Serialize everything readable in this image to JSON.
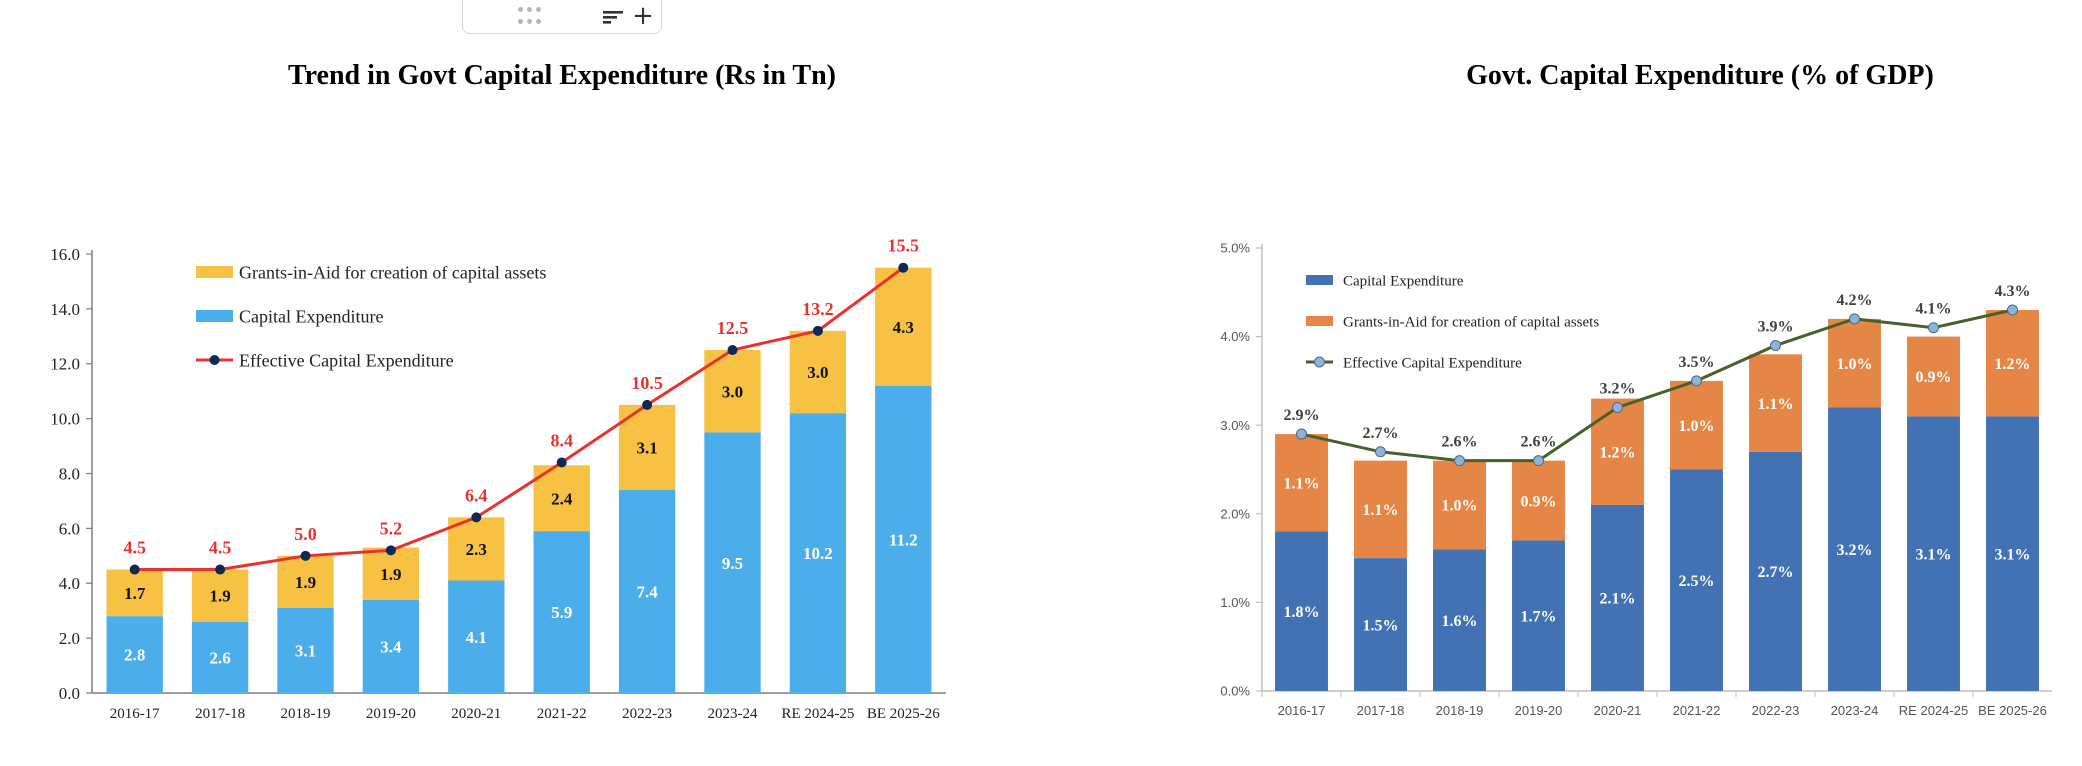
{
  "toolbar": {
    "drag_icon": "drag-handle-icon",
    "sort_icon": "sort-lines-icon",
    "add_label": "+"
  },
  "chart_data": [
    {
      "type": "bar",
      "stacked": true,
      "title": "Trend in Govt Capital Expenditure (Rs in Tn)",
      "categories": [
        "2016-17",
        "2017-18",
        "2018-19",
        "2019-20",
        "2020-21",
        "2021-22",
        "2022-23",
        "2023-24",
        "RE 2024-25",
        "BE 2025-26"
      ],
      "series": [
        {
          "name": "Capital Expenditure",
          "values": [
            "2.8",
            "2.6",
            "3.1",
            "3.4",
            "4.1",
            "5.9",
            "7.4",
            "9.5",
            "10.2",
            "11.2"
          ],
          "color": "#4baeea"
        },
        {
          "name": "Grants-in-Aid for creation of capital assets",
          "values": [
            "1.7",
            "1.9",
            "1.9",
            "1.9",
            "2.3",
            "2.4",
            "3.1",
            "3.0",
            "3.0",
            "4.3"
          ],
          "color": "#f7c144"
        },
        {
          "name": "Effective Capital Expenditure",
          "type": "line",
          "values": [
            "4.5",
            "4.5",
            "5.0",
            "5.2",
            "6.4",
            "8.4",
            "10.5",
            "12.5",
            "13.2",
            "15.5"
          ],
          "color": "#e8322b",
          "marker_color": "#0c2a55"
        }
      ],
      "legend_order": [
        1,
        0,
        2
      ],
      "yticks": [
        "0.0",
        "2.0",
        "4.0",
        "6.0",
        "8.0",
        "10.0",
        "12.0",
        "14.0",
        "16.0"
      ],
      "ylim": [
        0,
        16
      ],
      "legend_position": "top-left",
      "grid": false
    },
    {
      "type": "bar",
      "stacked": true,
      "title": "Govt. Capital Expenditure (% of GDP)",
      "categories": [
        "2016-17",
        "2017-18",
        "2018-19",
        "2019-20",
        "2020-21",
        "2021-22",
        "2022-23",
        "2023-24",
        "RE 2024-25",
        "BE 2025-26"
      ],
      "series": [
        {
          "name": "Capital Expenditure",
          "values": [
            "1.8%",
            "1.5%",
            "1.6%",
            "1.7%",
            "2.1%",
            "2.5%",
            "2.7%",
            "3.2%",
            "3.1%",
            "3.1%"
          ],
          "color": "#4272b4"
        },
        {
          "name": "Grants-in-Aid for creation of capital assets",
          "values": [
            "1.1%",
            "1.1%",
            "1.0%",
            "0.9%",
            "1.2%",
            "1.0%",
            "1.1%",
            "1.0%",
            "0.9%",
            "1.2%"
          ],
          "color": "#e58646"
        },
        {
          "name": "Effective Capital Expenditure",
          "type": "line",
          "values": [
            "2.9%",
            "2.7%",
            "2.6%",
            "2.6%",
            "3.2%",
            "3.5%",
            "3.9%",
            "4.2%",
            "4.1%",
            "4.3%"
          ],
          "color": "#46622a",
          "marker_color": "#8fb4d8"
        }
      ],
      "legend_order": [
        0,
        1,
        2
      ],
      "yticks": [
        "0.0%",
        "1.0%",
        "2.0%",
        "3.0%",
        "4.0%",
        "5.0%"
      ],
      "ylim": [
        0,
        5
      ],
      "legend_position": "top-left",
      "grid": false
    }
  ]
}
